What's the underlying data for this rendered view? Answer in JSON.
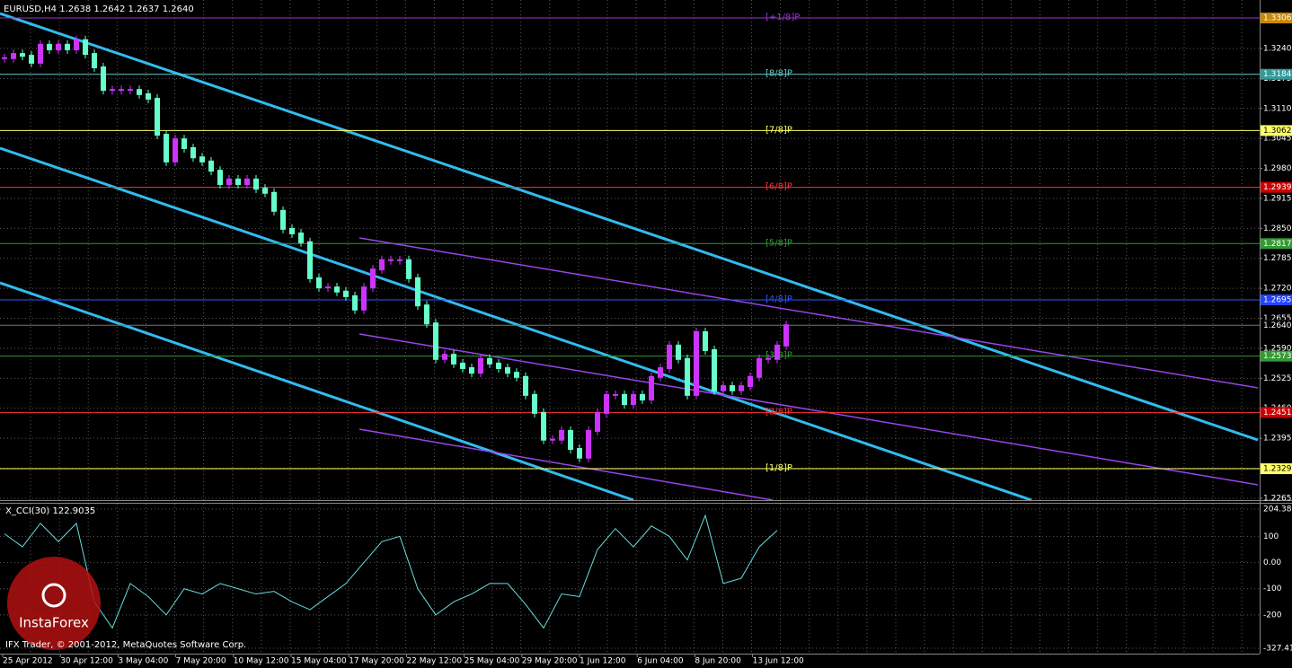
{
  "chart_data": {
    "type": "candlestick",
    "title": "EURUSD,H4  1.2638 1.2642 1.2637 1.2640",
    "up_color": "#cc33ff",
    "down_color": "#66ffcc",
    "grid": true,
    "ylim": [
      1.2261,
      1.3345
    ],
    "yticks": [
      {
        "value": 1.324,
        "label": "1.3240"
      },
      1.3175,
      {
        "value": 1.311,
        "label": "1.3110"
      },
      1.3045,
      {
        "value": 1.298,
        "label": "1.2980"
      },
      1.2915,
      {
        "value": 1.285,
        "label": "1.2850"
      },
      1.2785,
      {
        "value": 1.272,
        "label": "1.2720"
      },
      1.2655,
      {
        "value": 1.259,
        "label": "1.2590"
      },
      1.2525,
      {
        "value": 1.246,
        "label": "1.2460"
      },
      1.2395,
      {
        "value": 1.233,
        "label": "1.2330"
      },
      1.2265
    ],
    "current_price": {
      "value": 1.264,
      "label": "1.2640"
    },
    "close": [
      1.3219,
      1.3228,
      1.3224,
      1.3209,
      1.3248,
      1.3238,
      1.3248,
      1.3238,
      1.3258,
      1.3228,
      1.3199,
      1.315,
      1.315,
      1.315,
      1.315,
      1.3141,
      1.3131,
      1.3053,
      1.2995,
      1.3043,
      1.3024,
      1.3004,
      1.2995,
      1.2975,
      1.2946,
      1.2956,
      1.2946,
      1.2956,
      1.2936,
      1.2927,
      1.2888,
      1.2849,
      1.2839,
      1.282,
      1.2742,
      1.2722,
      1.2722,
      1.2713,
      1.2703,
      1.2674,
      1.2722,
      1.2761,
      1.2781,
      1.2781,
      1.2781,
      1.2742,
      1.2683,
      1.2644,
      1.2567,
      1.2576,
      1.2557,
      1.2547,
      1.2537,
      1.2567,
      1.2557,
      1.2547,
      1.2537,
      1.2528,
      1.2489,
      1.245,
      1.2392,
      1.2392,
      1.2411,
      1.2372,
      1.2353,
      1.2411,
      1.245,
      1.2489,
      1.2489,
      1.2469,
      1.2489,
      1.2479,
      1.2528,
      1.2547,
      1.2596,
      1.2567,
      1.2489,
      1.2625,
      1.2586,
      1.2499,
      1.2508,
      1.2499,
      1.2508,
      1.2528,
      1.2567,
      1.2567,
      1.2596,
      1.264
    ],
    "levels": [
      {
        "name": "[+1/8]P",
        "value": 1.3306,
        "color": "#9933cc",
        "box": "#cc8800"
      },
      {
        "name": "[8/8]P",
        "value": 1.3184,
        "color": "#66cccc",
        "box": "#339999"
      },
      {
        "name": "[7/8]P",
        "value": 1.3062,
        "color": "#ffff66",
        "box": "#ffff66"
      },
      {
        "name": "[6/8]P",
        "value": 1.2939,
        "color": "#ff3333",
        "box": "#cc0000"
      },
      {
        "name": "[5/8]P",
        "value": 1.2817,
        "color": "#339933",
        "box": "#339933"
      },
      {
        "name": "[4/8]P",
        "value": 1.2695,
        "color": "#3355ff",
        "box": "#2244ff"
      },
      {
        "name": "[3/8]P",
        "value": 1.2573,
        "color": "#339933",
        "box": "#339933"
      },
      {
        "name": "[2/8]P",
        "value": 1.2451,
        "color": "#ff3333",
        "box": "#cc0000"
      },
      {
        "name": "[1/8]P",
        "value": 1.2329,
        "color": "#ffff66",
        "box": "#ffff66"
      }
    ],
    "x_labels": [
      "25 Apr 2012",
      "30 Apr 12:00",
      "3 May 04:00",
      "7 May 20:00",
      "10 May 12:00",
      "15 May 04:00",
      "17 May 20:00",
      "22 May 12:00",
      "25 May 04:00",
      "29 May 20:00",
      "1 Jun 12:00",
      "6 Jun 04:00",
      "8 Jun 20:00",
      "13 Jun 12:00"
    ],
    "indicator": {
      "title": "X_CCI(30) 122.9035",
      "color": "#66dddd",
      "ylim": [
        -327.412,
        204.387
      ],
      "yticks": [
        204.387,
        100,
        {
          "value": 0,
          "label": "0.00"
        },
        -100,
        -200,
        -327.412
      ],
      "values": [
        110,
        60,
        150,
        80,
        150,
        -150,
        -250,
        -80,
        -130,
        -200,
        -100,
        -120,
        -80,
        -100,
        -120,
        -110,
        -150,
        -180,
        -130,
        -80,
        0,
        80,
        100,
        -100,
        -200,
        -150,
        -120,
        -80,
        -80,
        -160,
        -250,
        -120,
        -130,
        50,
        130,
        60,
        140,
        100,
        10,
        180,
        -80,
        -60,
        60,
        122.9035
      ]
    },
    "copyright": "IFX Trader, © 2001-2012, MetaQuotes Software Corp.",
    "logo": "InstaForex"
  }
}
